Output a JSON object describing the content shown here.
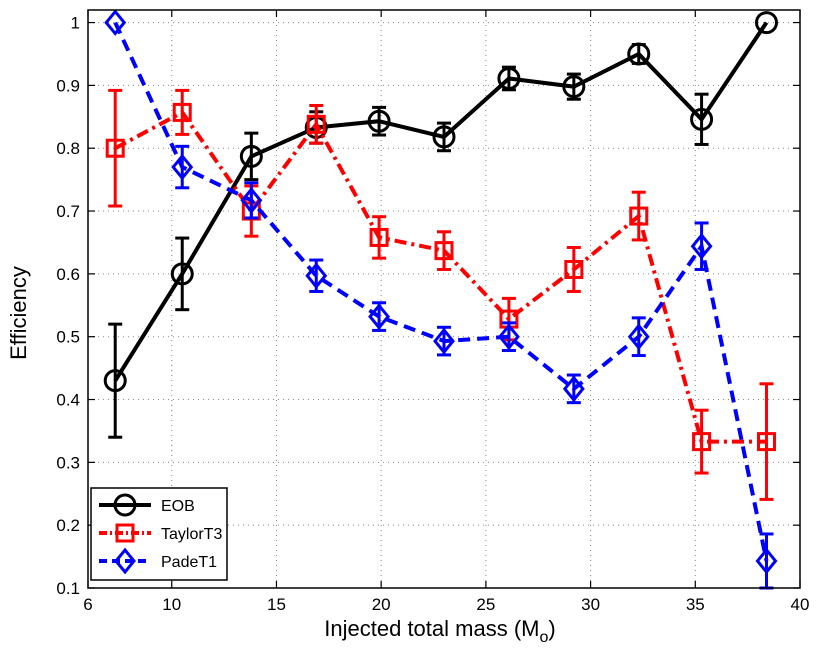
{
  "chart_data": {
    "type": "line",
    "title": "",
    "xlabel": "Injected total mass (M",
    "xlabel_subscript": "o",
    "xlabel_suffix": ")",
    "ylabel": "Efficiency",
    "xlim": [
      6,
      40
    ],
    "ylim": [
      0.1,
      1.02
    ],
    "xticks": [
      6,
      10,
      15,
      20,
      25,
      30,
      35,
      40
    ],
    "yticks": [
      0.1,
      0.2,
      0.3,
      0.4,
      0.5,
      0.6,
      0.7,
      0.8,
      0.9,
      1
    ],
    "xtick_labels": [
      "6",
      "10",
      "15",
      "20",
      "25",
      "30",
      "35",
      "40"
    ],
    "ytick_labels": [
      "0.1",
      "0.2",
      "0.3",
      "0.4",
      "0.5",
      "0.6",
      "0.7",
      "0.8",
      "0.9",
      "1"
    ],
    "grid": true,
    "legend_position": "bottom-left",
    "series": [
      {
        "name": "EOB",
        "color": "#000000",
        "line_style": "solid",
        "marker": "circle",
        "x": [
          7.3,
          10.5,
          13.8,
          16.9,
          19.9,
          23.0,
          26.1,
          29.2,
          32.3,
          35.3,
          38.4
        ],
        "y": [
          0.43,
          0.6,
          0.787,
          0.833,
          0.843,
          0.818,
          0.911,
          0.898,
          0.95,
          0.846,
          1.0
        ],
        "err": [
          0.09,
          0.057,
          0.037,
          0.025,
          0.022,
          0.022,
          0.018,
          0.02,
          0.015,
          0.04,
          0.0
        ]
      },
      {
        "name": "TaylorT3",
        "color": "#ff0000",
        "line_style": "dashdot",
        "marker": "square",
        "x": [
          7.3,
          10.5,
          13.8,
          16.9,
          19.9,
          23.0,
          26.1,
          29.2,
          32.3,
          35.3,
          38.4
        ],
        "y": [
          0.8,
          0.857,
          0.7,
          0.838,
          0.658,
          0.637,
          0.528,
          0.607,
          0.692,
          0.333,
          0.333
        ],
        "err": [
          0.092,
          0.035,
          0.04,
          0.03,
          0.033,
          0.03,
          0.033,
          0.035,
          0.038,
          0.05,
          0.092
        ]
      },
      {
        "name": "PadeT1",
        "color": "#0000ff",
        "line_style": "dashed",
        "marker": "diamond",
        "x": [
          7.3,
          10.5,
          13.8,
          16.9,
          19.9,
          23.0,
          26.1,
          29.2,
          32.3,
          35.3,
          38.4
        ],
        "y": [
          1.0,
          0.77,
          0.717,
          0.597,
          0.532,
          0.493,
          0.5,
          0.417,
          0.5,
          0.644,
          0.143
        ],
        "err": [
          0.0,
          0.033,
          0.028,
          0.025,
          0.022,
          0.022,
          0.022,
          0.022,
          0.03,
          0.037,
          0.043
        ]
      }
    ]
  }
}
